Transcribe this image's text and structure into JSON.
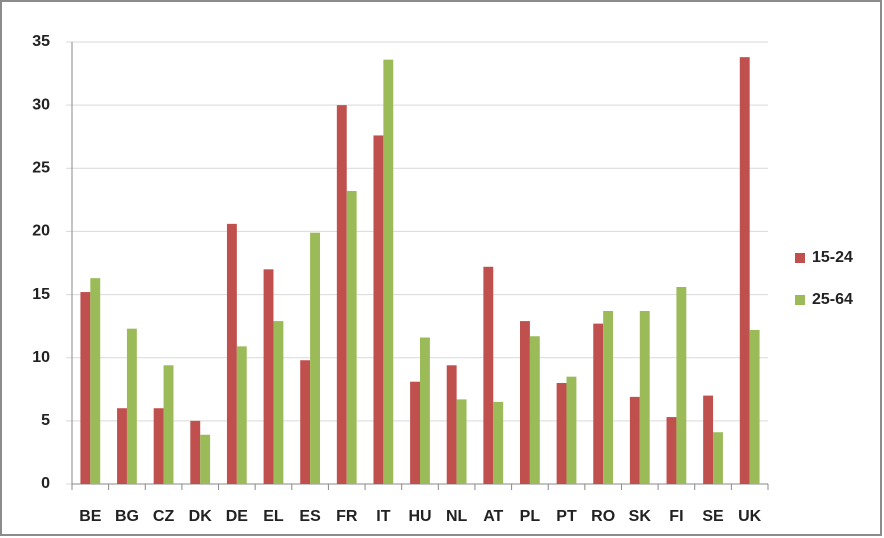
{
  "chart_data": {
    "type": "bar",
    "categories": [
      "BE",
      "BG",
      "CZ",
      "DK",
      "DE",
      "EL",
      "ES",
      "FR",
      "IT",
      "HU",
      "NL",
      "AT",
      "PL",
      "PT",
      "RO",
      "SK",
      "FI",
      "SE",
      "UK"
    ],
    "series": [
      {
        "name": "15-24",
        "color": "#c0504d",
        "values": [
          15.2,
          6,
          6,
          5,
          20.6,
          17,
          9.8,
          30,
          27.6,
          8.1,
          9.4,
          17.2,
          12.9,
          8,
          12.7,
          6.9,
          5.3,
          7,
          33.8
        ]
      },
      {
        "name": "25-64",
        "color": "#9bbb59",
        "values": [
          16.3,
          12.3,
          9.4,
          3.9,
          10.9,
          12.9,
          19.9,
          23.2,
          33.6,
          11.6,
          6.7,
          6.5,
          11.7,
          8.5,
          13.7,
          13.7,
          15.6,
          4.1,
          12.2
        ]
      }
    ],
    "ylim": [
      0,
      35
    ],
    "yticks": [
      0,
      5,
      10,
      15,
      20,
      25,
      30,
      35
    ],
    "grid": true,
    "legend": "right"
  }
}
